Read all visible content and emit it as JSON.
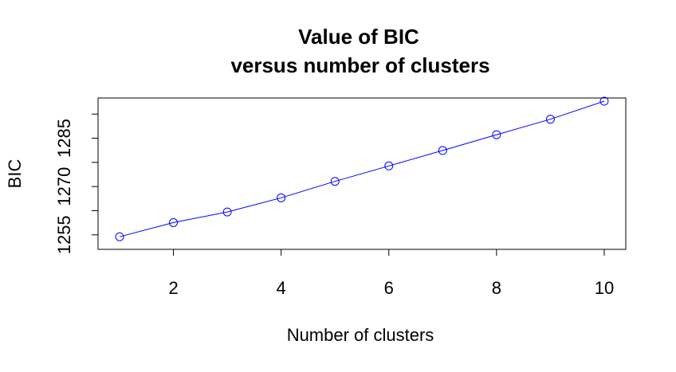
{
  "chart_data": {
    "type": "line",
    "title": "Value of BIC",
    "subtitle": "versus number of clusters",
    "xlabel": "Number of clusters",
    "ylabel": "BIC",
    "x": [
      1,
      2,
      3,
      4,
      5,
      6,
      7,
      8,
      9,
      10
    ],
    "series": [
      {
        "values": [
          1254.4,
          1258.8,
          1262.1,
          1266.5,
          1271.6,
          1276.4,
          1281.2,
          1286.1,
          1290.9,
          1296.5
        ],
        "color": "#0000ff",
        "marker": "open-circle"
      }
    ],
    "xlim": [
      0.6,
      10.4
    ],
    "ylim": [
      1250.5,
      1297.5
    ],
    "xticks": [
      2,
      4,
      6,
      8,
      10
    ],
    "xtick_labels": [
      "2",
      "4",
      "6",
      "8",
      "10"
    ],
    "yticks": [
      1255,
      1262.5,
      1270,
      1277.5,
      1285,
      1292.5
    ],
    "ytick_labels": [
      "1255",
      "",
      "1270",
      "",
      "1285",
      ""
    ],
    "grid": false,
    "legend": "none"
  }
}
